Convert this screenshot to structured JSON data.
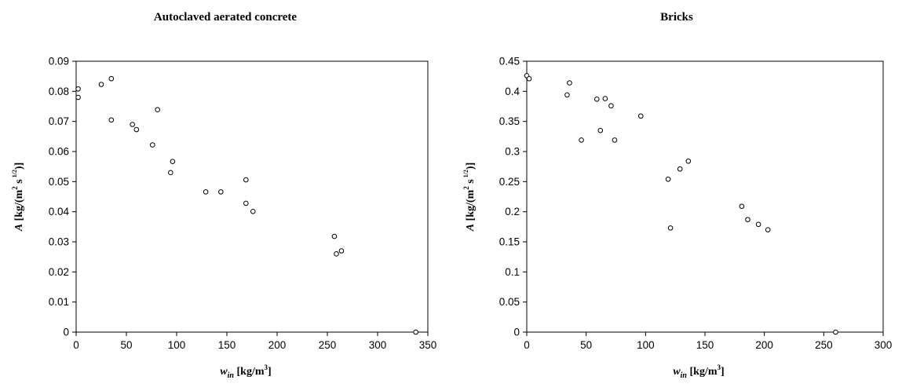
{
  "chart_data": [
    {
      "type": "scatter",
      "title": "Autoclaved aerated concrete",
      "xlabel": {
        "var": "w",
        "sub": "in",
        "unit_pre": "[kg/m",
        "unit_sup": "3",
        "unit_post": "]"
      },
      "ylabel": {
        "var": "A",
        "unit_pre": "[kg/(m",
        "sup1": "2",
        "mid": " s",
        "sup2": "1/2",
        "unit_post": ")]"
      },
      "xlim": [
        0,
        350
      ],
      "ylim": [
        0,
        0.09
      ],
      "xticks": [
        "0",
        "50",
        "100",
        "150",
        "200",
        "250",
        "300",
        "350"
      ],
      "yticks": [
        "0",
        "0.01",
        "0.02",
        "0.03",
        "0.04",
        "0.05",
        "0.06",
        "0.07",
        "0.08",
        "0.09"
      ],
      "grid": false,
      "marker": "open-circle",
      "points": [
        [
          2,
          0.0808
        ],
        [
          2,
          0.078
        ],
        [
          25,
          0.0823
        ],
        [
          35,
          0.0842
        ],
        [
          35,
          0.0705
        ],
        [
          56,
          0.069
        ],
        [
          60,
          0.0673
        ],
        [
          76,
          0.0622
        ],
        [
          81,
          0.0739
        ],
        [
          94,
          0.053
        ],
        [
          96,
          0.0567
        ],
        [
          129,
          0.0466
        ],
        [
          144,
          0.0466
        ],
        [
          169,
          0.0506
        ],
        [
          169,
          0.0428
        ],
        [
          176,
          0.0401
        ],
        [
          257,
          0.0318
        ],
        [
          259,
          0.026
        ],
        [
          264,
          0.027
        ],
        [
          338,
          0.0
        ]
      ]
    },
    {
      "type": "scatter",
      "title": "Bricks",
      "xlabel": {
        "var": "w",
        "sub": "in",
        "unit_pre": "[kg/m",
        "unit_sup": "3",
        "unit_post": "]"
      },
      "ylabel": {
        "var": "A",
        "unit_pre": "[kg/(m",
        "sup1": "2",
        "mid": " s",
        "sup2": "1/2",
        "unit_post": ")]"
      },
      "xlim": [
        0,
        300
      ],
      "ylim": [
        0,
        0.45
      ],
      "xticks": [
        "0",
        "50",
        "100",
        "150",
        "200",
        "250",
        "300"
      ],
      "yticks": [
        "0",
        "0.05",
        "0.1",
        "0.15",
        "0.2",
        "0.25",
        "0.3",
        "0.35",
        "0.4",
        "0.45"
      ],
      "grid": false,
      "marker": "open-circle",
      "points": [
        [
          0,
          0.426
        ],
        [
          2,
          0.421
        ],
        [
          34,
          0.394
        ],
        [
          36,
          0.414
        ],
        [
          46,
          0.319
        ],
        [
          59,
          0.387
        ],
        [
          62,
          0.335
        ],
        [
          66,
          0.388
        ],
        [
          71,
          0.376
        ],
        [
          74,
          0.319
        ],
        [
          96,
          0.359
        ],
        [
          119,
          0.254
        ],
        [
          121,
          0.173
        ],
        [
          129,
          0.271
        ],
        [
          136,
          0.284
        ],
        [
          181,
          0.209
        ],
        [
          186,
          0.187
        ],
        [
          195,
          0.179
        ],
        [
          203,
          0.17
        ],
        [
          260,
          0.0
        ]
      ]
    }
  ]
}
